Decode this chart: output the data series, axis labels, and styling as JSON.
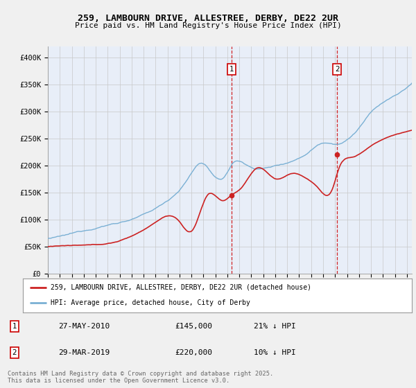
{
  "title_line1": "259, LAMBOURN DRIVE, ALLESTREE, DERBY, DE22 2UR",
  "title_line2": "Price paid vs. HM Land Registry's House Price Index (HPI)",
  "ylim": [
    0,
    420000
  ],
  "yticks": [
    0,
    50000,
    100000,
    150000,
    200000,
    250000,
    300000,
    350000,
    400000
  ],
  "ytick_labels": [
    "£0",
    "£50K",
    "£100K",
    "£150K",
    "£200K",
    "£250K",
    "£300K",
    "£350K",
    "£400K"
  ],
  "hpi_color": "#7ab0d4",
  "price_color": "#cc2222",
  "legend_line1": "259, LAMBOURN DRIVE, ALLESTREE, DERBY, DE22 2UR (detached house)",
  "legend_line2": "HPI: Average price, detached house, City of Derby",
  "annotation1_date": "27-MAY-2010",
  "annotation1_price": "£145,000",
  "annotation1_hpi": "21% ↓ HPI",
  "annotation2_date": "29-MAR-2019",
  "annotation2_price": "£220,000",
  "annotation2_hpi": "10% ↓ HPI",
  "footer": "Contains HM Land Registry data © Crown copyright and database right 2025.\nThis data is licensed under the Open Government Licence v3.0.",
  "bg_color": "#f0f0f0",
  "plot_bg_color": "#e8eef8"
}
